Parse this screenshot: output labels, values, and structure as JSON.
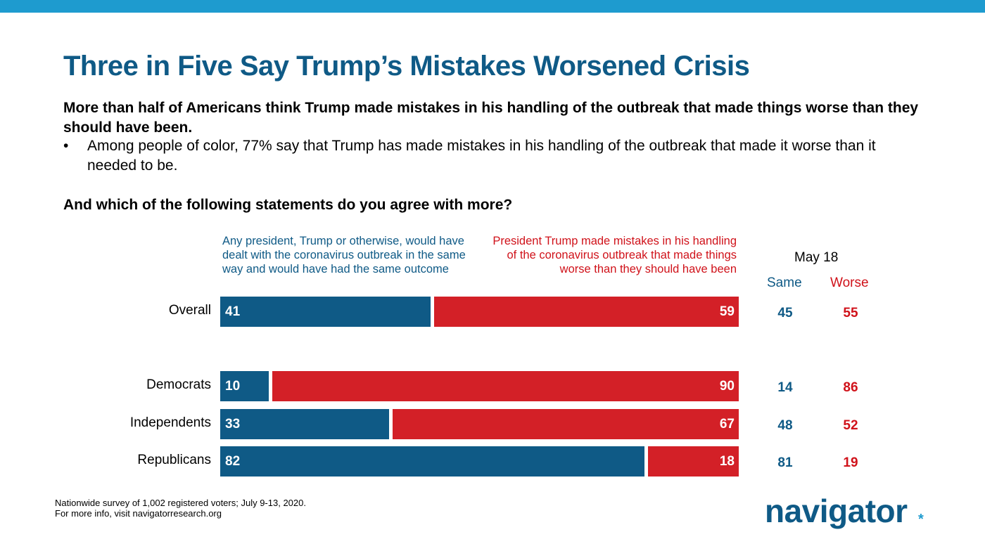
{
  "header": {
    "title": "Three in Five Say Trump’s Mistakes Worsened Crisis",
    "lead": "More than half of Americans think Trump made mistakes in his handling of the outbreak that made things worse than they should have been.",
    "bullet_symbol": "•",
    "bullet": "Among people of color, 77% say that Trump has made mistakes in his handling of the outbreak that made it worse than it needed to be.",
    "question": "And which of the following statements do you agree with more?"
  },
  "colors": {
    "same": "#0f5a86",
    "worse": "#d32027",
    "topbar": "#1e9bcf"
  },
  "chart_data": {
    "type": "bar",
    "orientation": "horizontal-stacked",
    "title": "And which of the following statements do you agree with more?",
    "categories": [
      "Overall",
      "Democrats",
      "Independents",
      "Republicans"
    ],
    "series": [
      {
        "name": "Any president, Trump or otherwise, would have dealt with the coronavirus outbreak in the same way and would have had the same outcome",
        "short": "Same",
        "values": [
          41,
          10,
          33,
          82
        ]
      },
      {
        "name": "President Trump made mistakes in his handling of the coronavirus outbreak that made things worse than they should have been",
        "short": "Worse",
        "values": [
          59,
          90,
          67,
          18
        ]
      }
    ],
    "comparison": {
      "title": "May 18",
      "columns": [
        "Same",
        "Worse"
      ],
      "same": [
        45,
        14,
        48,
        81
      ],
      "worse": [
        55,
        86,
        52,
        19
      ]
    },
    "xlim": [
      0,
      100
    ],
    "grid": false
  },
  "footer": {
    "line1": "Nationwide survey of 1,002 registered voters; July 9-13, 2020.",
    "line2": "For more info, visit navigatorresearch.org"
  },
  "logo": {
    "text": "navigator",
    "mark": "*"
  }
}
